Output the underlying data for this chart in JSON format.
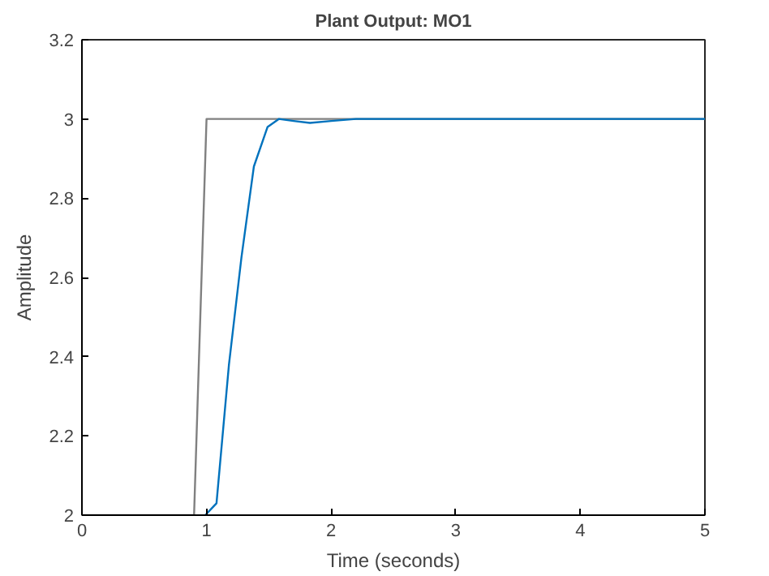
{
  "chart_data": {
    "type": "line",
    "title": "Plant Output: MO1",
    "xlabel": "Time (seconds)",
    "ylabel": "Amplitude",
    "xlim": [
      0,
      5
    ],
    "ylim": [
      2,
      3.2
    ],
    "xticks": [
      0,
      1,
      2,
      3,
      4,
      5
    ],
    "yticks": [
      2,
      2.2,
      2.4,
      2.6,
      2.8,
      3,
      3.2
    ],
    "grid": false,
    "series": [
      {
        "color": "#808080",
        "x": [
          0,
          0.9,
          1.0,
          5
        ],
        "values": [
          2,
          2,
          3,
          3
        ]
      },
      {
        "color": "#0072bd",
        "x": [
          0.99,
          1.08,
          1.18,
          1.28,
          1.38,
          1.49,
          1.58,
          1.7,
          1.83,
          2.0,
          2.2,
          3,
          4,
          5
        ],
        "values": [
          2,
          2.03,
          2.38,
          2.65,
          2.88,
          2.98,
          3.0,
          2.995,
          2.99,
          2.995,
          3.0,
          3.0,
          3.0,
          3.0
        ]
      }
    ]
  }
}
